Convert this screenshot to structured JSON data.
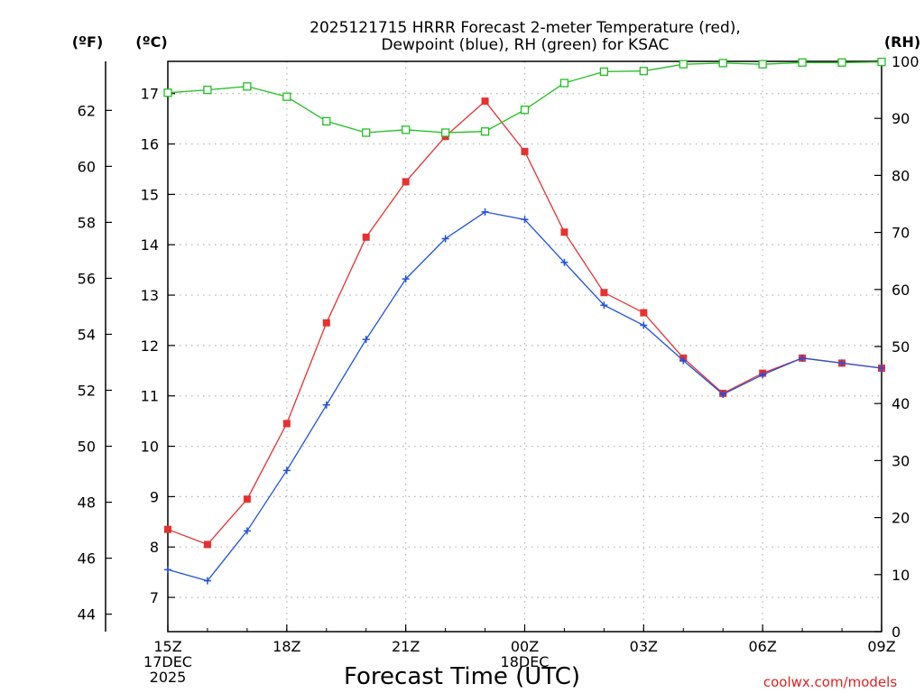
{
  "chart_data": {
    "type": "line",
    "title_line1": "2025121715 HRRR Forecast 2-meter Temperature (red),",
    "title_line2": "Dewpoint (blue), RH (green) for KSAC",
    "xlabel": "Forecast Time (UTC)",
    "credit": "coolwx.com/models",
    "left_outer_axis_label": "(ºF)",
    "left_inner_axis_label": "(ºC)",
    "right_axis_label": "(RH)",
    "x_hours": [
      0,
      1,
      2,
      3,
      4,
      5,
      6,
      7,
      8,
      9,
      10,
      11,
      12,
      13,
      14,
      15,
      16,
      17,
      18
    ],
    "x_ticks": [
      {
        "hour": 0,
        "lines": [
          "15Z",
          "17DEC",
          "2025"
        ]
      },
      {
        "hour": 3,
        "lines": [
          "18Z"
        ]
      },
      {
        "hour": 6,
        "lines": [
          "21Z"
        ]
      },
      {
        "hour": 9,
        "lines": [
          "00Z",
          "18DEC"
        ]
      },
      {
        "hour": 12,
        "lines": [
          "03Z"
        ]
      },
      {
        "hour": 15,
        "lines": [
          "06Z"
        ]
      },
      {
        "hour": 18,
        "lines": [
          "09Z"
        ]
      }
    ],
    "xlim": [
      0,
      18
    ],
    "celsius_range": [
      6.32,
      17.64
    ],
    "celsius_ticks": [
      7,
      8,
      9,
      10,
      11,
      12,
      13,
      14,
      15,
      16,
      17
    ],
    "fahrenheit_ticks": [
      44,
      46,
      48,
      50,
      52,
      54,
      56,
      58,
      60,
      62
    ],
    "rh_range": [
      0,
      100
    ],
    "rh_ticks": [
      0,
      10,
      20,
      30,
      40,
      50,
      60,
      70,
      80,
      90,
      100
    ],
    "series": [
      {
        "name": "Temperature",
        "unit": "C",
        "color": "#e83030",
        "marker": "filled-square",
        "values": [
          8.35,
          8.05,
          8.95,
          10.45,
          12.45,
          14.15,
          15.25,
          16.15,
          16.85,
          15.85,
          14.25,
          13.05,
          12.65,
          11.75,
          11.05,
          11.45,
          11.75,
          11.65,
          11.55
        ]
      },
      {
        "name": "Dewpoint",
        "unit": "C",
        "color": "#2050e0",
        "marker": "plus",
        "values": [
          7.55,
          7.33,
          8.32,
          9.52,
          10.82,
          12.12,
          13.32,
          14.12,
          14.65,
          14.5,
          13.65,
          12.8,
          12.4,
          11.7,
          11.03,
          11.42,
          11.75,
          11.65,
          11.55
        ]
      },
      {
        "name": "RH",
        "unit": "%",
        "color": "#20c020",
        "marker": "open-square",
        "values": [
          94.5,
          95.0,
          95.6,
          93.8,
          89.5,
          87.5,
          88.0,
          87.5,
          87.7,
          91.5,
          96.2,
          98.2,
          98.3,
          99.5,
          99.7,
          99.5,
          99.8,
          99.8,
          99.9
        ]
      }
    ]
  }
}
